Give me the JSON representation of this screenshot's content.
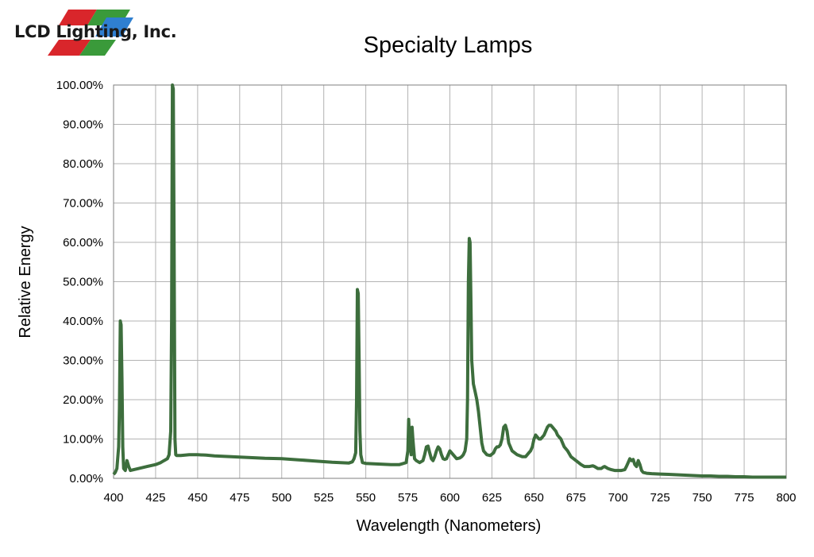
{
  "logo": {
    "text": "LCD Lighting, Inc.",
    "colors": [
      "#d9262b",
      "#3a9a3a",
      "#2f7fd0"
    ]
  },
  "chart_data": {
    "type": "line",
    "title": "Specialty Lamps",
    "xlabel": "Wavelength (Nanometers)",
    "ylabel": "Relative Energy",
    "xlim": [
      400,
      800
    ],
    "ylim": [
      0,
      100
    ],
    "x_ticks": [
      400,
      425,
      450,
      475,
      500,
      525,
      550,
      575,
      600,
      625,
      650,
      675,
      700,
      725,
      750,
      775,
      800
    ],
    "y_ticks": [
      0,
      10,
      20,
      30,
      40,
      50,
      60,
      70,
      80,
      90,
      100
    ],
    "y_tick_labels": [
      "0.00%",
      "10.00%",
      "20.00%",
      "30.00%",
      "40.00%",
      "50.00%",
      "60.00%",
      "70.00%",
      "80.00%",
      "90.00%",
      "100.00%"
    ],
    "grid": true,
    "line_color": "#3d6e3d",
    "series": [
      {
        "x": [
          400,
          401,
          402,
          403,
          403.5,
          404,
          404.5,
          405,
          405.5,
          406,
          407,
          408,
          409,
          410,
          412,
          415,
          418,
          420,
          425,
          428,
          430,
          432,
          433,
          434,
          434.5,
          435,
          435.5,
          436,
          436.5,
          437,
          437.5,
          438,
          440,
          445,
          450,
          455,
          460,
          470,
          480,
          490,
          500,
          510,
          520,
          530,
          535,
          540,
          542,
          543,
          544,
          544.5,
          545,
          545.5,
          546,
          546.5,
          547,
          548,
          550,
          555,
          560,
          565,
          570,
          574,
          575,
          575.5,
          576,
          577,
          577.5,
          578,
          579,
          580,
          582,
          584,
          585,
          586,
          587,
          588,
          589,
          590,
          591,
          592,
          593,
          594,
          595,
          596,
          597,
          598,
          599,
          600,
          602,
          604,
          606,
          607,
          608,
          609,
          610,
          610.5,
          611,
          611.5,
          612,
          612.5,
          613,
          614,
          615,
          616,
          617,
          618,
          619,
          620,
          622,
          624,
          626,
          627,
          628,
          629,
          630,
          631,
          632,
          633,
          634,
          635,
          637,
          640,
          643,
          645,
          646,
          647,
          648,
          649,
          650,
          651,
          652,
          653,
          654,
          655,
          656,
          657,
          658,
          659,
          660,
          661,
          662,
          663,
          664,
          665,
          666,
          667,
          668,
          670,
          672,
          675,
          678,
          680,
          683,
          685,
          686,
          688,
          690,
          691,
          692,
          694,
          696,
          698,
          700,
          702,
          704,
          705,
          706,
          707,
          708,
          709,
          710,
          711,
          712,
          713,
          714,
          715,
          717,
          720,
          725,
          730,
          735,
          740,
          745,
          750,
          755,
          760,
          765,
          770,
          775,
          780,
          785,
          790,
          795,
          800
        ],
        "y": [
          1.0,
          1.5,
          2.5,
          8.0,
          18.0,
          40.0,
          39.0,
          25.0,
          8.0,
          2.5,
          2.0,
          4.5,
          3.0,
          2.0,
          2.2,
          2.5,
          2.8,
          3.0,
          3.5,
          4.0,
          4.5,
          5.0,
          6.0,
          12.0,
          40.0,
          100.0,
          99.0,
          60.0,
          10.0,
          6.0,
          5.8,
          5.8,
          5.8,
          6.0,
          6.0,
          5.9,
          5.7,
          5.5,
          5.3,
          5.1,
          5.0,
          4.7,
          4.4,
          4.1,
          4.0,
          3.9,
          4.2,
          5.0,
          6.5,
          20.0,
          48.0,
          47.0,
          30.0,
          12.0,
          6.0,
          4.0,
          3.8,
          3.7,
          3.6,
          3.5,
          3.5,
          4.0,
          7.0,
          15.0,
          10.0,
          6.0,
          13.0,
          10.0,
          5.0,
          4.5,
          4.0,
          4.5,
          6.0,
          8.0,
          8.2,
          6.5,
          5.0,
          4.5,
          5.5,
          7.0,
          8.0,
          7.5,
          6.0,
          5.0,
          4.8,
          5.0,
          6.0,
          7.0,
          6.0,
          5.0,
          5.2,
          5.5,
          6.0,
          7.0,
          10.0,
          20.0,
          50.0,
          61.0,
          60.0,
          45.0,
          30.0,
          24.0,
          22.0,
          20.0,
          17.0,
          13.0,
          9.0,
          7.0,
          6.0,
          5.8,
          6.5,
          7.5,
          8.0,
          8.0,
          8.5,
          10.0,
          13.0,
          13.5,
          12.0,
          9.0,
          7.0,
          6.0,
          5.5,
          5.5,
          6.0,
          6.5,
          7.0,
          8.0,
          10.0,
          11.0,
          10.5,
          10.0,
          10.0,
          10.5,
          11.0,
          12.0,
          13.0,
          13.5,
          13.5,
          13.0,
          12.5,
          12.0,
          11.0,
          10.5,
          10.0,
          9.0,
          8.0,
          7.0,
          5.5,
          4.5,
          3.5,
          3.0,
          3.0,
          3.2,
          3.0,
          2.5,
          2.5,
          2.8,
          3.0,
          2.5,
          2.2,
          2.0,
          2.0,
          2.0,
          2.2,
          3.0,
          4.0,
          5.0,
          4.5,
          4.8,
          3.5,
          3.0,
          4.5,
          3.5,
          2.0,
          1.5,
          1.3,
          1.2,
          1.1,
          1.0,
          0.9,
          0.8,
          0.7,
          0.6,
          0.6,
          0.5,
          0.5,
          0.4,
          0.4,
          0.3,
          0.3,
          0.3,
          0.3,
          0.3
        ]
      }
    ]
  }
}
